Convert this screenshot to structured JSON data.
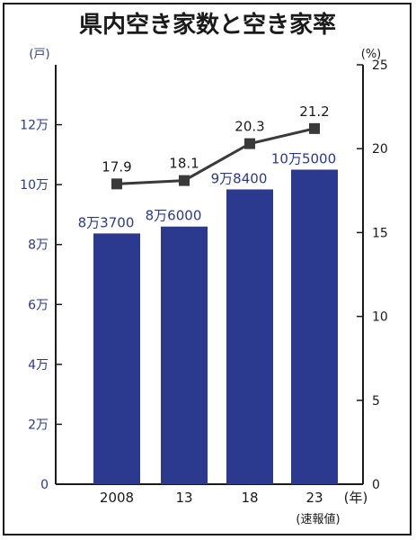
{
  "chart_data": {
    "type": "bar",
    "title": "県内空き家数と空き家率",
    "categories": [
      "2008",
      "13",
      "18",
      "23"
    ],
    "x_unit": "(年)",
    "x_note": "(速報値)",
    "y_left": {
      "unit": "(戸)",
      "ylim": [
        0,
        140000
      ],
      "ticks": [
        0,
        20000,
        40000,
        60000,
        80000,
        100000,
        120000
      ],
      "tick_labels": [
        "0",
        "2万",
        "4万",
        "6万",
        "8万",
        "10万",
        "12万"
      ]
    },
    "y_right": {
      "unit": "(%)",
      "ylim": [
        0,
        25
      ],
      "ticks": [
        0,
        5,
        10,
        15,
        20,
        25
      ],
      "tick_labels": [
        "0",
        "5",
        "10",
        "15",
        "20",
        "25"
      ]
    },
    "series": [
      {
        "type": "bar",
        "axis": "left",
        "values": [
          83700,
          86000,
          98400,
          105000
        ],
        "value_labels": [
          "8万3700",
          "8万6000",
          "9万8400",
          "10万5000"
        ],
        "color": "#2b3a8f"
      },
      {
        "type": "line",
        "axis": "right",
        "values": [
          17.9,
          18.1,
          20.3,
          21.2
        ],
        "value_labels": [
          "17.9",
          "18.1",
          "20.3",
          "21.2"
        ],
        "color": "#3a3a3a"
      }
    ],
    "grid": false
  }
}
